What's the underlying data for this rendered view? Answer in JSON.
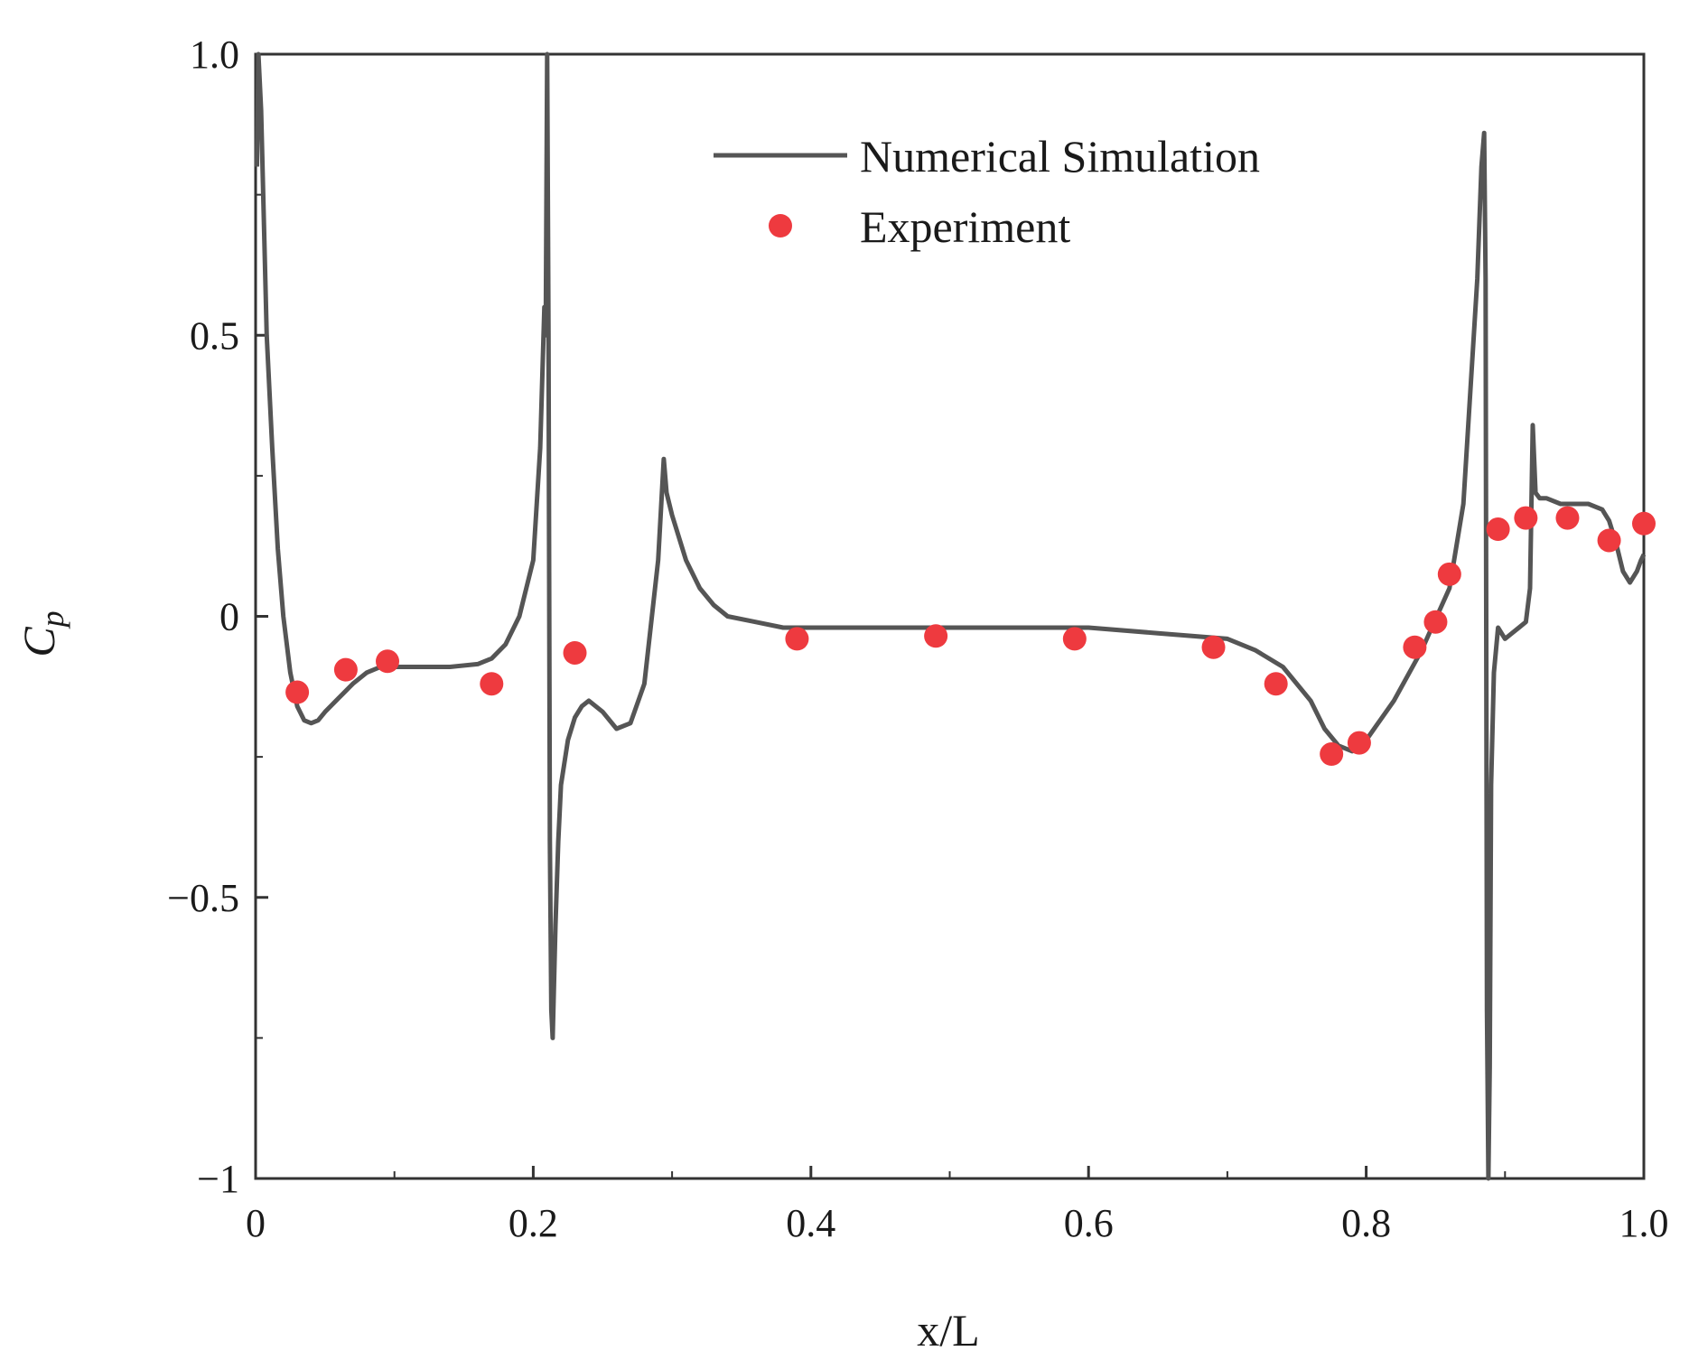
{
  "chart_data": {
    "type": "line",
    "title": "",
    "xlabel": "x/L",
    "ylabel": "C",
    "ylabel_subscript": "p",
    "xlim": [
      0,
      1.0
    ],
    "ylim": [
      -1,
      1.0
    ],
    "xticks": [
      0,
      0.2,
      0.4,
      0.6,
      0.8,
      1.0
    ],
    "xtick_labels": [
      "0",
      "0.2",
      "0.4",
      "0.6",
      "0.8",
      "1.0"
    ],
    "yticks": [
      -1,
      -0.5,
      0,
      0.5,
      1.0
    ],
    "ytick_labels": [
      "−1",
      "−0.5",
      "0",
      "0.5",
      "1.0"
    ],
    "legend_position": "top-right",
    "colors": {
      "simulation": "#555555",
      "experiment": "#ee3a3f",
      "axis": "#333333"
    },
    "series": [
      {
        "name": "Numerical Simulation",
        "kind": "line",
        "x": [
          0.001,
          0.002,
          0.004,
          0.006,
          0.008,
          0.012,
          0.016,
          0.02,
          0.025,
          0.03,
          0.035,
          0.04,
          0.045,
          0.05,
          0.06,
          0.07,
          0.08,
          0.09,
          0.1,
          0.12,
          0.14,
          0.16,
          0.17,
          0.18,
          0.19,
          0.2,
          0.205,
          0.208,
          0.209,
          0.21,
          0.211,
          0.212,
          0.213,
          0.214,
          0.216,
          0.218,
          0.22,
          0.225,
          0.23,
          0.235,
          0.24,
          0.25,
          0.26,
          0.27,
          0.28,
          0.29,
          0.294,
          0.296,
          0.3,
          0.31,
          0.32,
          0.33,
          0.34,
          0.36,
          0.38,
          0.4,
          0.45,
          0.5,
          0.55,
          0.6,
          0.65,
          0.7,
          0.72,
          0.74,
          0.76,
          0.77,
          0.78,
          0.79,
          0.8,
          0.82,
          0.84,
          0.86,
          0.87,
          0.875,
          0.88,
          0.883,
          0.885,
          0.886,
          0.887,
          0.888,
          0.889,
          0.89,
          0.892,
          0.895,
          0.9,
          0.905,
          0.91,
          0.915,
          0.918,
          0.92,
          0.922,
          0.925,
          0.93,
          0.94,
          0.95,
          0.96,
          0.97,
          0.975,
          0.98,
          0.985,
          0.99,
          0.995,
          0.998,
          1.0
        ],
        "values": [
          0.8,
          1.0,
          0.9,
          0.7,
          0.5,
          0.3,
          0.12,
          0.0,
          -0.1,
          -0.16,
          -0.185,
          -0.19,
          -0.185,
          -0.17,
          -0.145,
          -0.12,
          -0.1,
          -0.09,
          -0.09,
          -0.09,
          -0.09,
          -0.085,
          -0.075,
          -0.05,
          0.0,
          0.1,
          0.3,
          0.55,
          0.5,
          1.0,
          0.5,
          -0.4,
          -0.7,
          -0.75,
          -0.55,
          -0.4,
          -0.3,
          -0.22,
          -0.18,
          -0.16,
          -0.15,
          -0.17,
          -0.2,
          -0.19,
          -0.12,
          0.1,
          0.28,
          0.22,
          0.18,
          0.1,
          0.05,
          0.02,
          0.0,
          -0.01,
          -0.02,
          -0.02,
          -0.02,
          -0.02,
          -0.02,
          -0.02,
          -0.03,
          -0.04,
          -0.06,
          -0.09,
          -0.15,
          -0.2,
          -0.23,
          -0.24,
          -0.22,
          -0.15,
          -0.06,
          0.05,
          0.2,
          0.4,
          0.6,
          0.8,
          0.86,
          0.6,
          -0.7,
          -1.0,
          -0.8,
          -0.3,
          -0.1,
          -0.02,
          -0.04,
          -0.03,
          -0.02,
          -0.01,
          0.05,
          0.34,
          0.22,
          0.21,
          0.21,
          0.2,
          0.2,
          0.2,
          0.19,
          0.17,
          0.13,
          0.08,
          0.06,
          0.08,
          0.1,
          0.11
        ]
      },
      {
        "name": "Experiment",
        "kind": "scatter",
        "x": [
          0.03,
          0.065,
          0.095,
          0.17,
          0.23,
          0.39,
          0.49,
          0.59,
          0.69,
          0.735,
          0.775,
          0.795,
          0.835,
          0.85,
          0.86,
          0.895,
          0.915,
          0.945,
          0.975,
          1.0
        ],
        "values": [
          -0.135,
          -0.095,
          -0.08,
          -0.12,
          -0.065,
          -0.04,
          -0.035,
          -0.04,
          -0.055,
          -0.12,
          -0.245,
          -0.225,
          -0.055,
          -0.01,
          0.075,
          0.155,
          0.175,
          0.175,
          0.135,
          0.165
        ]
      }
    ]
  }
}
